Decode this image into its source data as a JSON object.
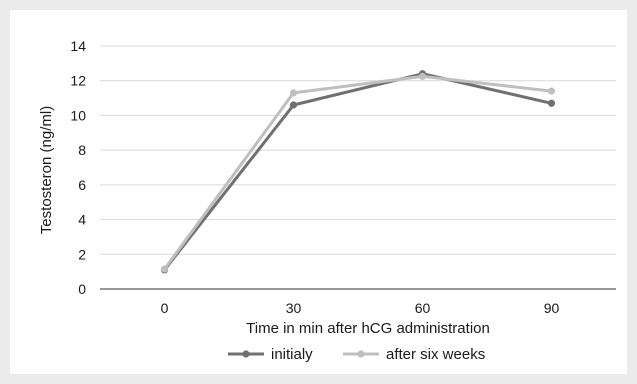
{
  "chart_data": {
    "type": "line",
    "x": [
      0,
      30,
      60,
      90
    ],
    "xlabel": "Time in min after hCG administration",
    "ylabel": "Testosteron (ng/ml)",
    "ylim": [
      0,
      14
    ],
    "yticks": [
      0,
      2,
      4,
      6,
      8,
      10,
      12,
      14
    ],
    "grid": true,
    "legend_position": "bottom",
    "series": [
      {
        "name": "initialy",
        "values": [
          1.1,
          10.6,
          12.4,
          10.7
        ],
        "color": "#707070"
      },
      {
        "name": "after six weeks",
        "values": [
          1.15,
          11.3,
          12.25,
          11.4
        ],
        "color": "#bfbfbf"
      }
    ]
  },
  "colors": {
    "grid": "#d9d9d9",
    "axis": "#595959",
    "background": "#ebebeb",
    "panel": "#ffffff"
  }
}
